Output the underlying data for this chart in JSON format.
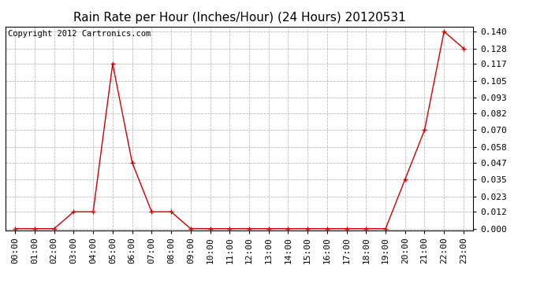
{
  "title": "Rain Rate per Hour (Inches/Hour) (24 Hours) 20120531",
  "copyright": "Copyright 2012 Cartronics.com",
  "hours": [
    "00:00",
    "01:00",
    "02:00",
    "03:00",
    "04:00",
    "05:00",
    "06:00",
    "07:00",
    "08:00",
    "09:00",
    "10:00",
    "11:00",
    "12:00",
    "13:00",
    "14:00",
    "15:00",
    "16:00",
    "17:00",
    "18:00",
    "19:00",
    "20:00",
    "21:00",
    "22:00",
    "23:00"
  ],
  "values": [
    0.0,
    0.0,
    0.0,
    0.012,
    0.012,
    0.117,
    0.047,
    0.012,
    0.012,
    0.0,
    0.0,
    0.0,
    0.0,
    0.0,
    0.0,
    0.0,
    0.0,
    0.0,
    0.0,
    0.0,
    0.035,
    0.07,
    0.14,
    0.128
  ],
  "yticks": [
    0.0,
    0.012,
    0.023,
    0.035,
    0.047,
    0.058,
    0.07,
    0.082,
    0.093,
    0.105,
    0.117,
    0.128,
    0.14
  ],
  "ylim": [
    -0.001,
    0.1435
  ],
  "line_color": "#cc0000",
  "marker": "+",
  "marker_size": 4,
  "marker_linewidth": 1.0,
  "grid_color": "#bbbbbb",
  "background_color": "#ffffff",
  "title_fontsize": 11,
  "tick_fontsize": 8,
  "copyright_fontsize": 7.5
}
